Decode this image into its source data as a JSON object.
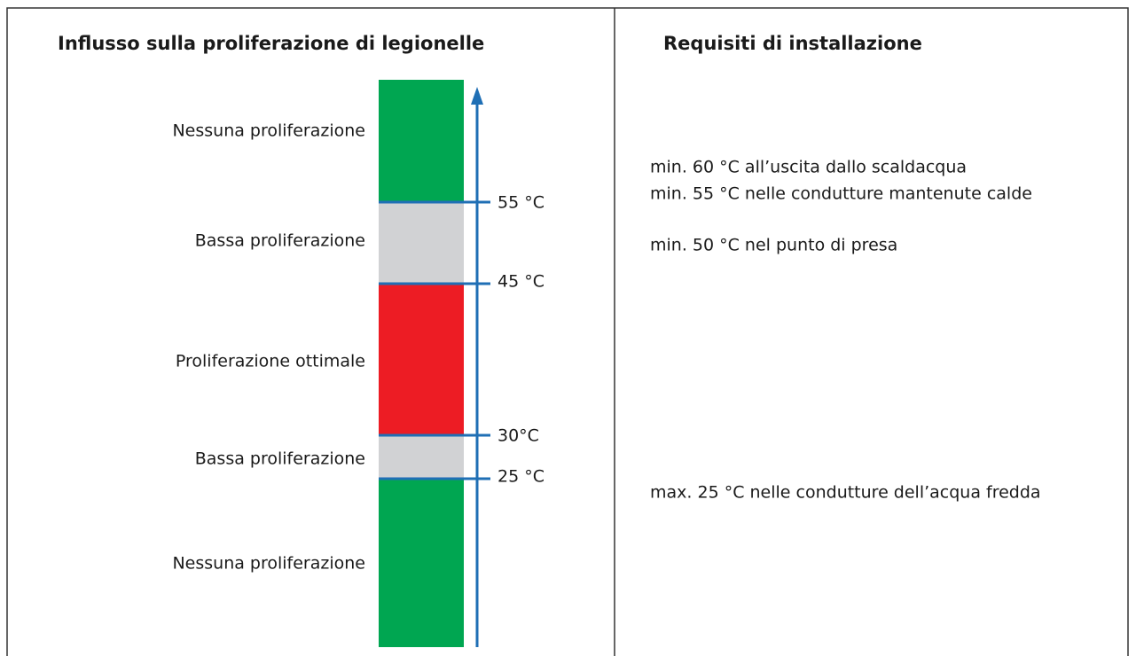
{
  "left": {
    "title": "Influsso sulla proliferazione di legionelle",
    "zones": [
      "Nessuna proliferazione",
      "Bassa proliferazione",
      "Proliferazione ottimale",
      "Bassa proliferazione",
      "Nessuna proliferazione"
    ],
    "thresholds": [
      "55 °C",
      "45 °C",
      "30°C",
      "25 °C"
    ]
  },
  "right": {
    "title": "Requisiti di installazione",
    "requirements": [
      "min. 60 °C all’uscita dallo scaldacqua",
      "min. 55 °C nelle condutture mantenute calde",
      "min. 50 °C nel punto di presa",
      "max. 25 °C nelle condutture dell’acqua fredda"
    ]
  }
}
